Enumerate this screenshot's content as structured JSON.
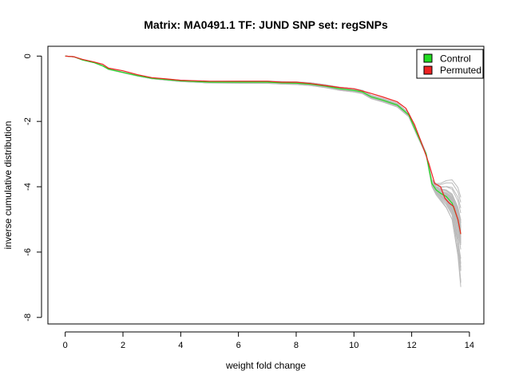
{
  "chart_data": {
    "type": "line",
    "title": "Matrix: MA0491.1 TF: JUND SNP set: regSNPs",
    "xlabel": "weight fold change",
    "ylabel": "inverse cumulative distribution",
    "xlim": [
      -0.6,
      14.5
    ],
    "ylim": [
      -8.2,
      0.3
    ],
    "x_ticks": [
      0,
      2,
      4,
      6,
      8,
      10,
      12,
      14
    ],
    "y_ticks": [
      0,
      -2,
      -4,
      -6,
      -8
    ],
    "grid": false,
    "legend": {
      "position": "top-right",
      "entries": [
        {
          "label": "Control",
          "color": "#22dd22"
        },
        {
          "label": "Permuted",
          "color": "#ee2222"
        }
      ]
    },
    "background_series_color": "#bbbbbb",
    "background_series_count": 40,
    "series": [
      {
        "name": "Control",
        "color": "#22dd22",
        "points": [
          [
            0,
            0
          ],
          [
            0.3,
            -0.02
          ],
          [
            0.6,
            -0.12
          ],
          [
            1.0,
            -0.2
          ],
          [
            1.3,
            -0.3
          ],
          [
            1.5,
            -0.4
          ],
          [
            2.0,
            -0.5
          ],
          [
            2.5,
            -0.6
          ],
          [
            3.0,
            -0.68
          ],
          [
            3.5,
            -0.72
          ],
          [
            4.0,
            -0.76
          ],
          [
            5.0,
            -0.8
          ],
          [
            6.0,
            -0.8
          ],
          [
            7.0,
            -0.8
          ],
          [
            7.5,
            -0.82
          ],
          [
            8.0,
            -0.83
          ],
          [
            8.5,
            -0.86
          ],
          [
            9.0,
            -0.92
          ],
          [
            9.5,
            -1.0
          ],
          [
            10.0,
            -1.05
          ],
          [
            10.3,
            -1.1
          ],
          [
            10.6,
            -1.25
          ],
          [
            11.0,
            -1.35
          ],
          [
            11.5,
            -1.5
          ],
          [
            11.9,
            -1.8
          ],
          [
            12.2,
            -2.4
          ],
          [
            12.5,
            -3.0
          ],
          [
            12.7,
            -3.9
          ],
          [
            12.85,
            -4.1
          ],
          [
            13.0,
            -4.2
          ],
          [
            13.2,
            -4.3
          ],
          [
            13.4,
            -4.5
          ],
          [
            13.6,
            -5.0
          ],
          [
            13.7,
            -5.45
          ]
        ]
      },
      {
        "name": "Permuted",
        "color": "#ee2222",
        "points": [
          [
            0,
            0
          ],
          [
            0.3,
            -0.02
          ],
          [
            0.6,
            -0.1
          ],
          [
            1.0,
            -0.18
          ],
          [
            1.3,
            -0.25
          ],
          [
            1.5,
            -0.37
          ],
          [
            2.0,
            -0.45
          ],
          [
            2.5,
            -0.57
          ],
          [
            3.0,
            -0.66
          ],
          [
            3.5,
            -0.7
          ],
          [
            4.0,
            -0.74
          ],
          [
            5.0,
            -0.77
          ],
          [
            6.0,
            -0.77
          ],
          [
            7.0,
            -0.77
          ],
          [
            7.5,
            -0.8
          ],
          [
            8.0,
            -0.8
          ],
          [
            8.5,
            -0.84
          ],
          [
            9.0,
            -0.9
          ],
          [
            9.5,
            -0.96
          ],
          [
            10.0,
            -1.0
          ],
          [
            10.5,
            -1.12
          ],
          [
            11.0,
            -1.25
          ],
          [
            11.5,
            -1.4
          ],
          [
            11.8,
            -1.6
          ],
          [
            12.1,
            -2.1
          ],
          [
            12.4,
            -2.8
          ],
          [
            12.6,
            -3.3
          ],
          [
            12.8,
            -3.9
          ],
          [
            13.0,
            -4.0
          ],
          [
            13.15,
            -4.35
          ],
          [
            13.3,
            -4.5
          ],
          [
            13.45,
            -4.6
          ],
          [
            13.6,
            -5.0
          ],
          [
            13.7,
            -5.45
          ]
        ]
      }
    ]
  }
}
